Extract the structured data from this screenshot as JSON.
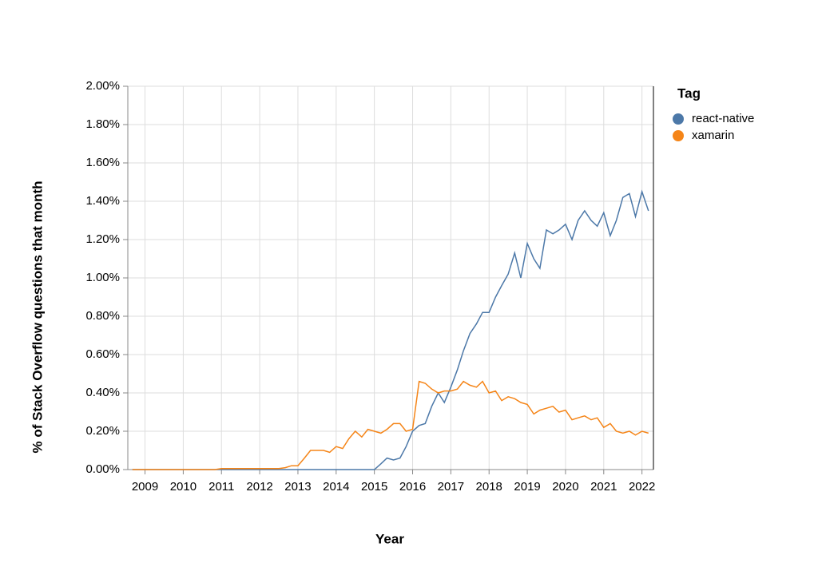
{
  "chart_data": {
    "type": "line",
    "xlabel": "Year",
    "ylabel": "% of Stack Overflow questions that month",
    "legend_title": "Tag",
    "legend": "right",
    "grid": true,
    "xlim": [
      2008.55,
      2022.3
    ],
    "xticks": [
      2009,
      2010,
      2011,
      2012,
      2013,
      2014,
      2015,
      2016,
      2017,
      2018,
      2019,
      2020,
      2021,
      2022
    ],
    "ylim": [
      0,
      2
    ],
    "yticks": [
      {
        "value": 0,
        "label": "0.00%"
      },
      {
        "value": 0.2,
        "label": "0.20%"
      },
      {
        "value": 0.4,
        "label": "0.40%"
      },
      {
        "value": 0.6,
        "label": "0.60%"
      },
      {
        "value": 0.8,
        "label": "0.80%"
      },
      {
        "value": 1,
        "label": "1.00%"
      },
      {
        "value": 1.2,
        "label": "1.20%"
      },
      {
        "value": 1.4,
        "label": "1.40%"
      },
      {
        "value": 1.6,
        "label": "1.60%"
      },
      {
        "value": 1.8,
        "label": "1.80%"
      },
      {
        "value": 2,
        "label": "2.00%"
      }
    ],
    "x": [
      2008.67,
      2008.83,
      2009,
      2009.17,
      2009.33,
      2009.5,
      2009.67,
      2009.83,
      2010,
      2010.17,
      2010.33,
      2010.5,
      2010.67,
      2010.83,
      2011,
      2011.17,
      2011.33,
      2011.5,
      2011.67,
      2011.83,
      2012,
      2012.17,
      2012.33,
      2012.5,
      2012.67,
      2012.83,
      2013,
      2013.17,
      2013.33,
      2013.5,
      2013.67,
      2013.83,
      2014,
      2014.17,
      2014.33,
      2014.5,
      2014.67,
      2014.83,
      2015,
      2015.17,
      2015.33,
      2015.5,
      2015.67,
      2015.83,
      2016,
      2016.17,
      2016.33,
      2016.5,
      2016.67,
      2016.83,
      2017,
      2017.17,
      2017.33,
      2017.5,
      2017.67,
      2017.83,
      2018,
      2018.17,
      2018.33,
      2018.5,
      2018.67,
      2018.83,
      2019,
      2019.17,
      2019.33,
      2019.5,
      2019.67,
      2019.83,
      2020,
      2020.17,
      2020.33,
      2020.5,
      2020.67,
      2020.83,
      2021,
      2021.17,
      2021.33,
      2021.5,
      2021.67,
      2021.83,
      2022,
      2022.17
    ],
    "series": [
      {
        "name": "react-native",
        "color": "#4c78a8",
        "values": [
          0,
          0,
          0,
          0,
          0,
          0,
          0,
          0,
          0,
          0,
          0,
          0,
          0,
          0,
          0,
          0,
          0,
          0,
          0,
          0,
          0,
          0,
          0,
          0,
          0,
          0,
          0,
          0,
          0,
          0,
          0,
          0,
          0,
          0,
          0,
          0,
          0,
          0,
          0,
          0.03,
          0.06,
          0.05,
          0.06,
          0.12,
          0.2,
          0.23,
          0.24,
          0.33,
          0.4,
          0.35,
          0.43,
          0.52,
          0.62,
          0.71,
          0.76,
          0.82,
          0.82,
          0.9,
          0.96,
          1.02,
          1.13,
          1.0,
          1.18,
          1.1,
          1.05,
          1.25,
          1.23,
          1.25,
          1.28,
          1.2,
          1.3,
          1.35,
          1.3,
          1.27,
          1.34,
          1.22,
          1.3,
          1.42,
          1.44,
          1.32,
          1.45,
          1.35
        ]
      },
      {
        "name": "xamarin",
        "color": "#f58518",
        "values": [
          0,
          0,
          0,
          0,
          0,
          0,
          0,
          0,
          0,
          0,
          0,
          0,
          0,
          0,
          0.005,
          0.005,
          0.005,
          0.005,
          0.005,
          0.005,
          0.005,
          0.005,
          0.005,
          0.005,
          0.01,
          0.02,
          0.02,
          0.06,
          0.1,
          0.1,
          0.1,
          0.09,
          0.12,
          0.11,
          0.16,
          0.2,
          0.17,
          0.21,
          0.2,
          0.19,
          0.21,
          0.24,
          0.24,
          0.2,
          0.21,
          0.46,
          0.45,
          0.42,
          0.4,
          0.41,
          0.41,
          0.42,
          0.46,
          0.44,
          0.43,
          0.46,
          0.4,
          0.41,
          0.36,
          0.38,
          0.37,
          0.35,
          0.34,
          0.29,
          0.31,
          0.32,
          0.33,
          0.3,
          0.31,
          0.26,
          0.27,
          0.28,
          0.26,
          0.27,
          0.22,
          0.24,
          0.2,
          0.19,
          0.2,
          0.18,
          0.2,
          0.19
        ]
      }
    ]
  }
}
